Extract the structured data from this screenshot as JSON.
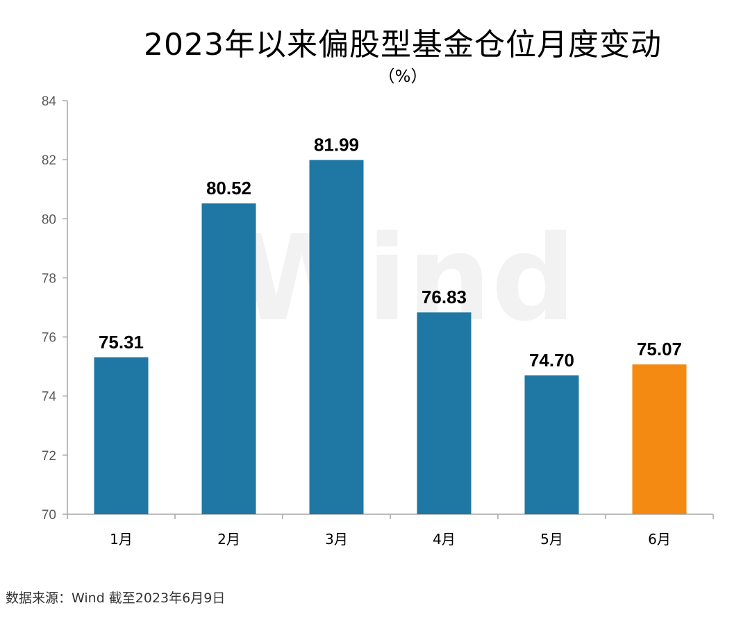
{
  "chart_data": {
    "type": "bar",
    "title": "2023年以来偏股型基金仓位月度变动",
    "subtitle": "（%）",
    "categories": [
      "1月",
      "2月",
      "3月",
      "4月",
      "5月",
      "6月"
    ],
    "values": [
      75.31,
      80.52,
      81.99,
      76.83,
      74.7,
      75.07
    ],
    "value_labels": [
      "75.31",
      "80.52",
      "81.99",
      "76.83",
      "74.70",
      "75.07"
    ],
    "ylim": [
      70,
      84
    ],
    "yticks": [
      70,
      72,
      74,
      76,
      78,
      80,
      82,
      84
    ],
    "xlabel": "",
    "ylabel": "",
    "grid": false,
    "bar_colors": [
      "#1f77a3",
      "#1f77a3",
      "#1f77a3",
      "#1f77a3",
      "#1f77a3",
      "#f58a12"
    ],
    "watermark": "Wind"
  },
  "source_note": "数据来源：Wind   截至2023年6月9日"
}
